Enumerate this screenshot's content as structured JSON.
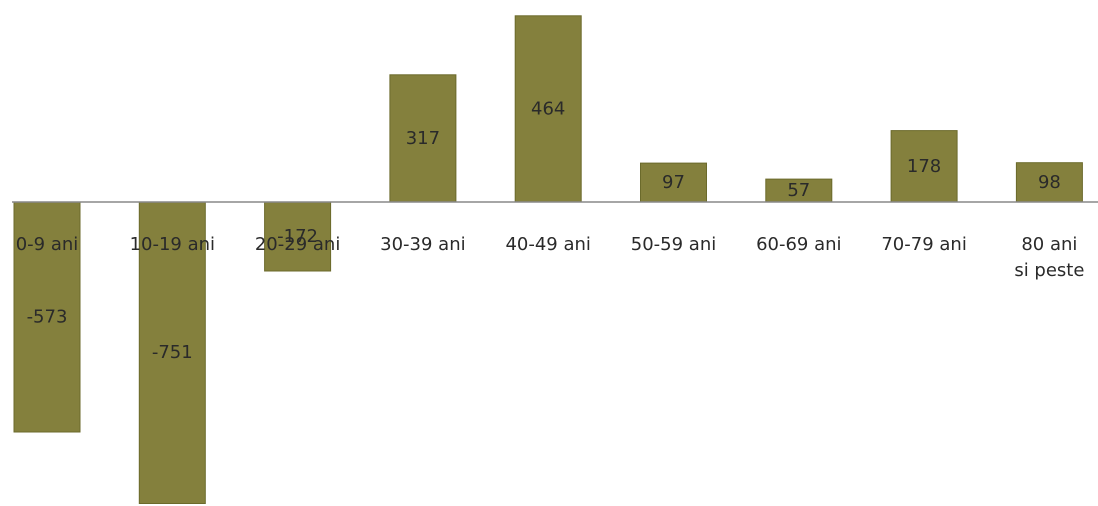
{
  "chart_data": {
    "type": "bar",
    "title": "",
    "xlabel": "",
    "ylabel": "",
    "categories": [
      "0-9 ani",
      "10-19 ani",
      "20-29 ani",
      "30-39 ani",
      "40-49 ani",
      "50-59 ani",
      "60-69 ani",
      "70-79 ani",
      "80 ani si peste"
    ],
    "values": [
      -573,
      -751,
      -172,
      317,
      464,
      97,
      57,
      178,
      98
    ],
    "ylim": [
      -751,
      464
    ],
    "grid": false,
    "legend": "none",
    "bar_color": "#84803d"
  }
}
